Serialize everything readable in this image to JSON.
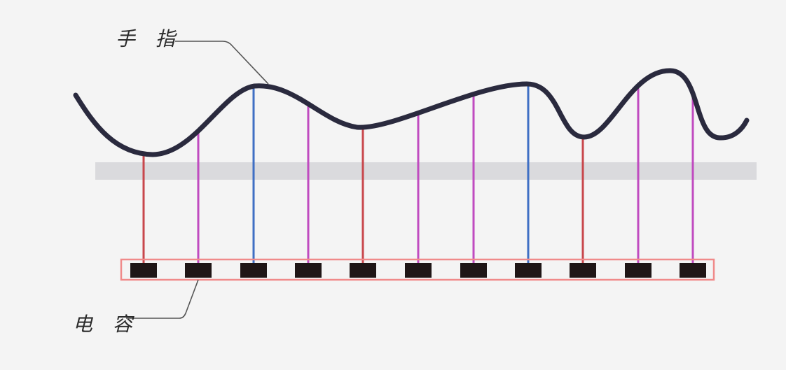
{
  "labels": {
    "finger": "手 指",
    "capacitor": "电 容"
  },
  "colors": {
    "background": "#f4f4f4",
    "finger_curve": "#2a2a3e",
    "glass_layer": "#dadadd",
    "capacitor_box": "#f08a8a",
    "capacitor_cell": "#1f1616",
    "leader_line": "#555555",
    "signal_red": "#c8474c",
    "signal_magenta": "#c04bc0",
    "signal_blue": "#3f6fc4"
  },
  "sensors": [
    {
      "index": 1,
      "signal": "red"
    },
    {
      "index": 2,
      "signal": "magenta"
    },
    {
      "index": 3,
      "signal": "blue"
    },
    {
      "index": 4,
      "signal": "magenta"
    },
    {
      "index": 5,
      "signal": "red"
    },
    {
      "index": 6,
      "signal": "magenta"
    },
    {
      "index": 7,
      "signal": "magenta"
    },
    {
      "index": 8,
      "signal": "blue"
    },
    {
      "index": 9,
      "signal": "red"
    },
    {
      "index": 10,
      "signal": "magenta"
    },
    {
      "index": 11,
      "signal": "magenta"
    }
  ]
}
